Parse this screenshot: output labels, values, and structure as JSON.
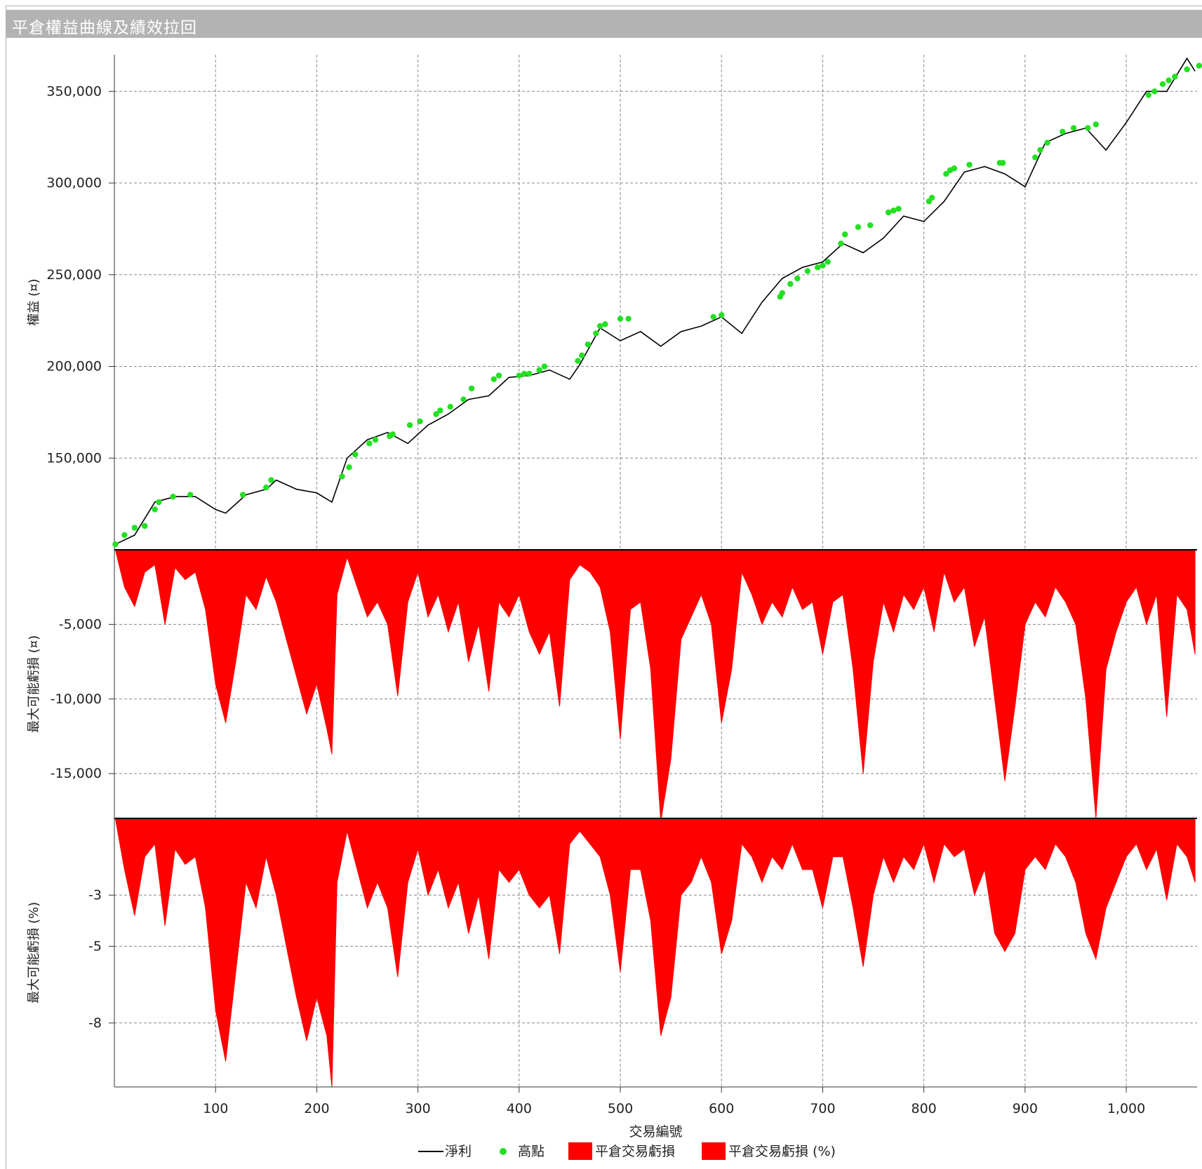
{
  "window": {
    "title": "平倉權益曲線及績效拉回"
  },
  "chart_data": [
    {
      "type": "line",
      "panel": "equity",
      "ylabel": "權益 (¤)",
      "ylim": [
        100000,
        370000
      ],
      "yticks": [
        350000,
        300000,
        250000,
        200000,
        150000
      ],
      "ytick_labels": [
        "350,000",
        "300,000",
        "250,000",
        "200,000",
        "150,000"
      ],
      "grid": true,
      "series": [
        {
          "name": "淨利",
          "color": "#000000",
          "x": [
            1,
            20,
            40,
            60,
            80,
            100,
            110,
            130,
            150,
            160,
            180,
            200,
            215,
            230,
            250,
            270,
            290,
            310,
            330,
            350,
            370,
            390,
            410,
            430,
            450,
            460,
            480,
            500,
            520,
            540,
            560,
            580,
            600,
            620,
            640,
            660,
            680,
            700,
            720,
            740,
            760,
            780,
            800,
            820,
            840,
            860,
            880,
            900,
            920,
            940,
            960,
            980,
            1000,
            1020,
            1040,
            1060,
            1068
          ],
          "y": [
            103000,
            108000,
            126000,
            129000,
            129000,
            122000,
            120000,
            130000,
            133000,
            138000,
            133000,
            131000,
            126000,
            150000,
            160000,
            164000,
            158000,
            168000,
            174000,
            182000,
            184000,
            194000,
            195000,
            198000,
            193000,
            201000,
            221000,
            214000,
            219000,
            211000,
            219000,
            222000,
            227000,
            218000,
            235000,
            248000,
            254000,
            257000,
            267000,
            262000,
            270000,
            282000,
            279000,
            290000,
            306000,
            309000,
            305000,
            298000,
            322000,
            327000,
            330000,
            318000,
            333000,
            350000,
            350000,
            368000,
            361000
          ]
        },
        {
          "name": "高點",
          "color": "#22e022",
          "x": [
            1,
            10,
            20,
            30,
            40,
            44,
            58,
            75,
            127,
            150,
            155,
            225,
            232,
            238,
            252,
            258,
            272,
            275,
            292,
            302,
            318,
            322,
            332,
            345,
            353,
            375,
            380,
            400,
            405,
            410,
            420,
            425,
            458,
            462,
            468,
            476,
            480,
            485,
            500,
            508,
            592,
            600,
            658,
            660,
            668,
            675,
            685,
            695,
            700,
            705,
            718,
            722,
            735,
            747,
            765,
            770,
            775,
            805,
            808,
            822,
            826,
            830,
            845,
            875,
            878,
            910,
            915,
            922,
            937,
            948,
            962,
            970,
            1022,
            1028,
            1036,
            1042,
            1048,
            1060,
            1072,
            1085,
            1100
          ],
          "y": [
            103000,
            108000,
            112000,
            113000,
            122000,
            126000,
            129000,
            130000,
            130000,
            134000,
            138000,
            140000,
            145000,
            152000,
            158000,
            160000,
            162000,
            163000,
            168000,
            170000,
            174000,
            176000,
            178000,
            182000,
            188000,
            193000,
            195000,
            195000,
            196000,
            196000,
            198000,
            200000,
            203000,
            206000,
            212000,
            218000,
            222000,
            223000,
            226000,
            226000,
            227000,
            228000,
            238000,
            240000,
            245000,
            248000,
            252000,
            254000,
            255000,
            257000,
            267000,
            272000,
            276000,
            277000,
            284000,
            285000,
            286000,
            290000,
            292000,
            305000,
            307000,
            308000,
            310000,
            311000,
            311000,
            314000,
            318000,
            322000,
            328000,
            330000,
            330000,
            332000,
            348000,
            350000,
            354000,
            356000,
            358000,
            362000,
            364000,
            366000,
            370000
          ]
        }
      ]
    },
    {
      "type": "area",
      "panel": "drawdown-amount",
      "ylabel": "最大可能虧損 (¤)",
      "ylim": [
        -18000,
        0
      ],
      "yticks": [
        -5000,
        -10000,
        -15000
      ],
      "ytick_labels": [
        "-5,000",
        "-10,000",
        "-15,000"
      ],
      "grid": true,
      "series": [
        {
          "name": "平倉交易虧損",
          "color": "#ff0000",
          "x": [
            1,
            10,
            20,
            30,
            40,
            50,
            60,
            70,
            80,
            90,
            100,
            110,
            120,
            130,
            140,
            150,
            160,
            170,
            180,
            190,
            200,
            210,
            215,
            220,
            230,
            240,
            250,
            260,
            270,
            280,
            290,
            300,
            310,
            320,
            330,
            340,
            350,
            360,
            370,
            380,
            390,
            400,
            410,
            420,
            430,
            440,
            450,
            460,
            470,
            480,
            490,
            500,
            510,
            520,
            530,
            540,
            550,
            560,
            570,
            580,
            590,
            600,
            610,
            620,
            630,
            640,
            650,
            660,
            670,
            680,
            690,
            700,
            710,
            720,
            730,
            740,
            750,
            760,
            770,
            780,
            790,
            800,
            810,
            820,
            830,
            840,
            850,
            860,
            870,
            880,
            890,
            900,
            910,
            920,
            930,
            940,
            950,
            960,
            970,
            980,
            990,
            1000,
            1010,
            1020,
            1030,
            1040,
            1050,
            1060,
            1068
          ],
          "y": [
            0,
            -2500,
            -3800,
            -1500,
            -1000,
            -5000,
            -1200,
            -2000,
            -1500,
            -4000,
            -9000,
            -11600,
            -7500,
            -3000,
            -4000,
            -1800,
            -3500,
            -6000,
            -8500,
            -11000,
            -9000,
            -12000,
            -13700,
            -3000,
            -500,
            -2500,
            -4500,
            -3500,
            -5000,
            -9800,
            -3500,
            -1500,
            -4500,
            -3000,
            -5500,
            -3500,
            -7500,
            -5000,
            -9500,
            -3500,
            -4500,
            -3000,
            -5500,
            -7000,
            -5500,
            -10500,
            -2000,
            -1000,
            -1500,
            -2500,
            -5500,
            -12700,
            -4000,
            -3500,
            -8000,
            -18200,
            -14000,
            -6000,
            -4500,
            -3000,
            -5000,
            -11600,
            -8000,
            -1500,
            -3000,
            -5000,
            -3500,
            -4500,
            -2500,
            -4000,
            -3500,
            -7000,
            -3500,
            -3000,
            -8000,
            -15000,
            -7500,
            -3500,
            -5500,
            -3000,
            -4000,
            -2500,
            -5500,
            -1500,
            -3500,
            -2500,
            -6500,
            -4500,
            -10000,
            -15500,
            -10500,
            -5000,
            -3500,
            -4500,
            -2500,
            -3500,
            -5000,
            -10000,
            -18000,
            -8000,
            -5500,
            -3500,
            -2500,
            -5000,
            -3000,
            -11200,
            -3000,
            -4000,
            -7000
          ]
        }
      ]
    },
    {
      "type": "area",
      "panel": "drawdown-percent",
      "ylabel": "最大可能虧損 (%)",
      "ylim": [
        -10.5,
        0
      ],
      "yticks": [
        -3,
        -5,
        -8
      ],
      "ytick_labels": [
        "-3",
        "-5",
        "-8"
      ],
      "grid": true,
      "series": [
        {
          "name": "平倉交易虧損 (%)",
          "color": "#ff0000",
          "x": [
            1,
            10,
            20,
            30,
            40,
            50,
            60,
            70,
            80,
            90,
            100,
            110,
            120,
            130,
            140,
            150,
            160,
            170,
            180,
            190,
            200,
            210,
            215,
            220,
            230,
            240,
            250,
            260,
            270,
            280,
            290,
            300,
            310,
            320,
            330,
            340,
            350,
            360,
            370,
            380,
            390,
            400,
            410,
            420,
            430,
            440,
            450,
            460,
            470,
            480,
            490,
            500,
            510,
            520,
            530,
            540,
            550,
            560,
            570,
            580,
            590,
            600,
            610,
            620,
            630,
            640,
            650,
            660,
            670,
            680,
            690,
            700,
            710,
            720,
            730,
            740,
            750,
            760,
            770,
            780,
            790,
            800,
            810,
            820,
            830,
            840,
            850,
            860,
            870,
            880,
            890,
            900,
            910,
            920,
            930,
            940,
            950,
            960,
            970,
            980,
            990,
            1000,
            1010,
            1020,
            1030,
            1040,
            1050,
            1060,
            1068
          ],
          "y": [
            0,
            -2.0,
            -3.8,
            -1.5,
            -1.0,
            -4.2,
            -1.2,
            -1.8,
            -1.5,
            -3.5,
            -7.5,
            -9.5,
            -6.0,
            -2.5,
            -3.5,
            -1.5,
            -3.0,
            -5.0,
            -7.0,
            -8.7,
            -7.0,
            -8.5,
            -10.5,
            -2.5,
            -0.5,
            -2.0,
            -3.5,
            -2.5,
            -3.5,
            -6.2,
            -2.5,
            -1.2,
            -3.0,
            -2.0,
            -3.5,
            -2.5,
            -4.5,
            -3.0,
            -5.5,
            -2.0,
            -2.5,
            -2.0,
            -3.0,
            -3.5,
            -3.0,
            -5.3,
            -1.0,
            -0.5,
            -1.0,
            -1.5,
            -3.0,
            -6.0,
            -2.0,
            -2.0,
            -4.0,
            -8.5,
            -7.0,
            -3.0,
            -2.5,
            -1.5,
            -2.5,
            -5.3,
            -4.0,
            -1.0,
            -1.5,
            -2.5,
            -1.5,
            -2.0,
            -1.0,
            -2.0,
            -2.0,
            -3.5,
            -1.5,
            -1.5,
            -3.5,
            -5.8,
            -3.0,
            -1.5,
            -2.5,
            -1.5,
            -2.0,
            -1.0,
            -2.5,
            -1.0,
            -1.5,
            -1.2,
            -3.0,
            -2.0,
            -4.5,
            -5.2,
            -4.5,
            -2.0,
            -1.5,
            -2.0,
            -1.0,
            -1.5,
            -2.5,
            -4.5,
            -5.5,
            -3.5,
            -2.5,
            -1.5,
            -1.0,
            -2.0,
            -1.2,
            -3.2,
            -1.0,
            -1.5,
            -2.5
          ]
        }
      ]
    }
  ],
  "xaxis": {
    "label": "交易編號",
    "xlim": [
      0,
      1070
    ],
    "ticks": [
      100,
      200,
      300,
      400,
      500,
      600,
      700,
      800,
      900,
      1000
    ],
    "tick_labels": [
      "100",
      "200",
      "300",
      "400",
      "500",
      "600",
      "700",
      "800",
      "900",
      "1,000"
    ]
  },
  "legend": {
    "position": "bottom-center",
    "items": [
      {
        "label": "淨利",
        "symbol": "line",
        "color": "#000000"
      },
      {
        "label": "高點",
        "symbol": "dot",
        "color": "#22e022"
      },
      {
        "label": "平倉交易虧損",
        "symbol": "box",
        "color": "#ff0000"
      },
      {
        "label": "平倉交易虧損 (%)",
        "symbol": "box",
        "color": "#ff0000"
      }
    ]
  }
}
